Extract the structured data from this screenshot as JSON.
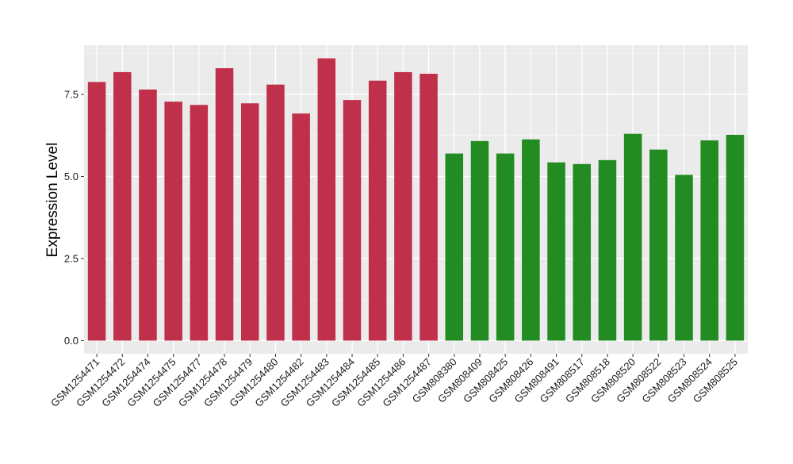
{
  "chart_data": {
    "type": "bar",
    "title": "",
    "xlabel": "",
    "ylabel": "Expression Level",
    "ylim": [
      -0.4,
      9.0
    ],
    "yticks": [
      0.0,
      2.5,
      5.0,
      7.5
    ],
    "ytick_labels": [
      "0.0",
      "2.5",
      "5.0",
      "7.5"
    ],
    "grid": true,
    "legend": "none",
    "colors": {
      "group1": "#C0304A",
      "group2": "#228B22",
      "panel": "#EBEBEB",
      "grid_major": "#FFFFFF",
      "grid_minor": "#F5F5F5"
    },
    "categories": [
      "GSM1254471",
      "GSM1254472",
      "GSM1254474",
      "GSM1254475",
      "GSM1254477",
      "GSM1254478",
      "GSM1254479",
      "GSM1254480",
      "GSM1254482",
      "GSM1254483",
      "GSM1254484",
      "GSM1254485",
      "GSM1254486",
      "GSM1254487",
      "GSM808380",
      "GSM808409",
      "GSM808425",
      "GSM808426",
      "GSM808491",
      "GSM808517",
      "GSM808518",
      "GSM808520",
      "GSM808522",
      "GSM808523",
      "GSM808524",
      "GSM808525"
    ],
    "values": [
      7.88,
      8.18,
      7.65,
      7.28,
      7.18,
      8.3,
      7.23,
      7.8,
      6.92,
      8.6,
      7.33,
      7.92,
      8.18,
      8.13,
      5.7,
      6.08,
      5.7,
      6.13,
      5.43,
      5.38,
      5.5,
      6.3,
      5.82,
      5.05,
      6.1,
      6.27
    ],
    "groups": [
      1,
      1,
      1,
      1,
      1,
      1,
      1,
      1,
      1,
      1,
      1,
      1,
      1,
      1,
      2,
      2,
      2,
      2,
      2,
      2,
      2,
      2,
      2,
      2,
      2,
      2
    ]
  }
}
